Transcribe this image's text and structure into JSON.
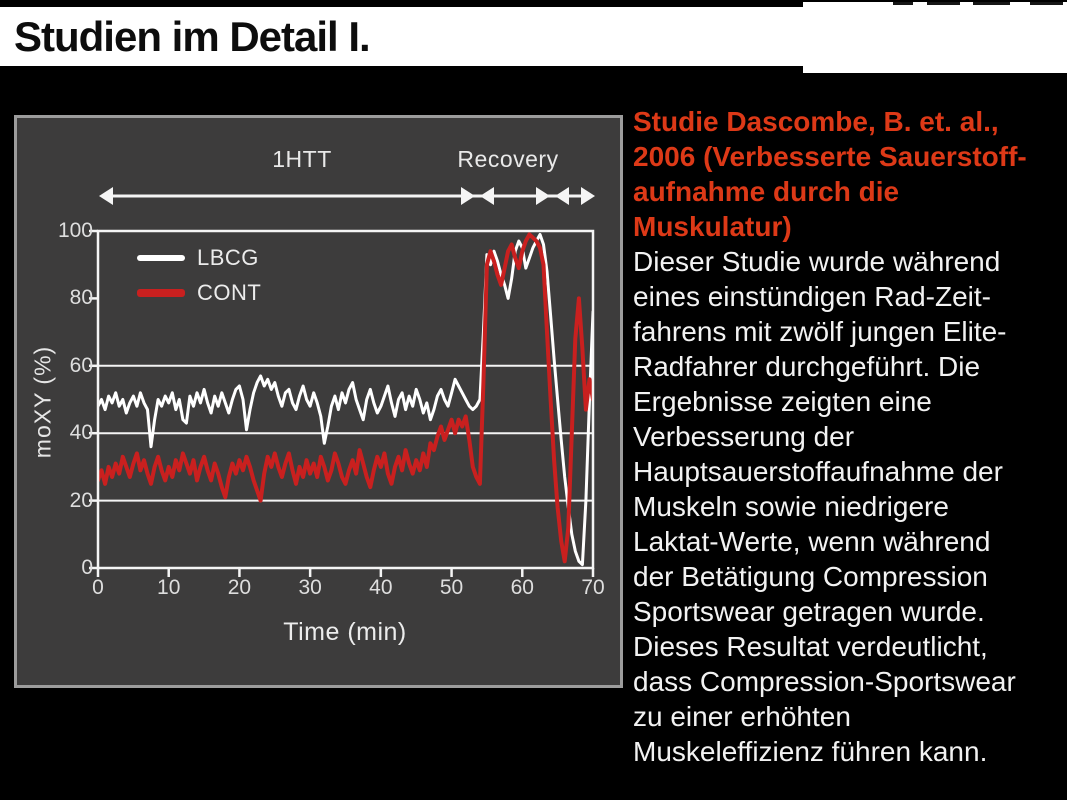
{
  "title_bar": {
    "text": "Studien im Detail I."
  },
  "colors": {
    "page_background": "#000000",
    "banner_background": "#ffffff",
    "panel_background": "#3d3c3c",
    "panel_border": "#9c9c9c",
    "axis": "#f5f5f5",
    "lbcg_line": "#ffffff",
    "cont_line": "#c9201f",
    "heading_red": "#dd3917",
    "body_text": "#f2f2f2"
  },
  "chart": {
    "phase_labels": {
      "htt": "1HTT",
      "recovery": "Recovery"
    },
    "legend": [
      {
        "name": "LBCG",
        "color": "#ffffff"
      },
      {
        "name": "CONT",
        "color": "#c9201f"
      }
    ],
    "y_axis_label": "moXY (%)",
    "x_axis_label": "Time (min)",
    "x_ticks": [
      "0",
      "10",
      "20",
      "30",
      "40",
      "50",
      "60",
      "70"
    ],
    "y_ticks": [
      "0",
      "20",
      "40",
      "60",
      "80",
      "100"
    ]
  },
  "chart_data": {
    "type": "line",
    "title": "",
    "xlabel": "Time (min)",
    "ylabel": "moXY (%)",
    "xlim": [
      0,
      70
    ],
    "ylim": [
      0,
      100
    ],
    "x_tick_step": 10,
    "y_tick_step": 20,
    "gridlines_y": [
      20,
      40,
      60
    ],
    "grid": "horizontal-only",
    "legend_position": "top-left-inside",
    "annotations": [
      {
        "label": "1HTT",
        "x_range": [
          0,
          53
        ]
      },
      {
        "label": "Recovery",
        "x_range": [
          53,
          70
        ]
      }
    ],
    "x_start": 0,
    "x_step": 0.5,
    "series": [
      {
        "name": "LBCG",
        "color": "#ffffff",
        "values": [
          48,
          50,
          47,
          51,
          49,
          52,
          48,
          50,
          46,
          49,
          51,
          48,
          52,
          49,
          47,
          36,
          44,
          50,
          48,
          51,
          49,
          52,
          47,
          50,
          44,
          43,
          51,
          48,
          52,
          49,
          53,
          49,
          46,
          51,
          48,
          52,
          49,
          46,
          50,
          53,
          54,
          50,
          41,
          47,
          52,
          55,
          57,
          54,
          56,
          53,
          55,
          51,
          48,
          52,
          53,
          49,
          47,
          51,
          54,
          50,
          48,
          52,
          49,
          45,
          37,
          42,
          48,
          51,
          47,
          52,
          49,
          53,
          55,
          50,
          47,
          44,
          50,
          53,
          49,
          46,
          48,
          51,
          54,
          49,
          45,
          50,
          52,
          47,
          51,
          48,
          53,
          50,
          46,
          49,
          44,
          47,
          51,
          53,
          50,
          48,
          52,
          56,
          54,
          52,
          50,
          48,
          47,
          48,
          50,
          70,
          93,
          90,
          94,
          91,
          87,
          84,
          80,
          86,
          94,
          97,
          95,
          89,
          92,
          95,
          97,
          99,
          96,
          88,
          75,
          62,
          50,
          38,
          27,
          18,
          10,
          5,
          2,
          1,
          20,
          50,
          76
        ]
      },
      {
        "name": "CONT",
        "color": "#c9201f",
        "values": [
          26,
          29,
          25,
          30,
          27,
          31,
          28,
          33,
          30,
          27,
          31,
          34,
          29,
          32,
          28,
          25,
          30,
          33,
          29,
          26,
          30,
          27,
          32,
          29,
          34,
          31,
          28,
          32,
          26,
          30,
          33,
          29,
          26,
          31,
          28,
          24,
          21,
          27,
          31,
          28,
          32,
          29,
          33,
          30,
          26,
          23,
          20,
          28,
          33,
          30,
          34,
          30,
          27,
          31,
          34,
          29,
          25,
          30,
          27,
          32,
          28,
          31,
          27,
          33,
          30,
          26,
          29,
          34,
          31,
          27,
          25,
          29,
          32,
          28,
          35,
          31,
          27,
          24,
          29,
          33,
          30,
          34,
          28,
          25,
          30,
          33,
          29,
          35,
          31,
          28,
          32,
          29,
          34,
          30,
          37,
          35,
          39,
          42,
          38,
          41,
          44,
          40,
          44,
          42,
          45,
          38,
          30,
          27,
          25,
          55,
          90,
          94,
          91,
          87,
          84,
          89,
          94,
          96,
          92,
          89,
          94,
          97,
          99,
          98,
          97,
          95,
          90,
          70,
          50,
          32,
          18,
          8,
          2,
          12,
          40,
          68,
          80,
          65,
          47,
          56,
          50
        ]
      }
    ]
  },
  "study_text": {
    "heading_lines": [
      "Studie Dascombe, B. et. al.,",
      "2006 (Verbesserte Sauerstoff-",
      "aufnahme durch die",
      "Muskulatur)"
    ],
    "body_lines": [
      "Dieser Studie wurde während",
      "eines einstündigen Rad-Zeit-",
      "fahrens mit zwölf jungen Elite-",
      "Radfahrer durchgeführt. Die",
      "Ergebnisse zeigten eine",
      "Verbesserung der",
      "Hauptsauerstoffaufnahme der",
      "Muskeln sowie niedrigere",
      "Laktat-Werte, wenn während",
      "der Betätigung Compression",
      "Sportswear getragen wurde.",
      "Dieses Resultat verdeutlicht,",
      "dass Compression-Sportswear",
      "zu einer erhöhten",
      "Muskeleffizienz führen kann."
    ]
  }
}
